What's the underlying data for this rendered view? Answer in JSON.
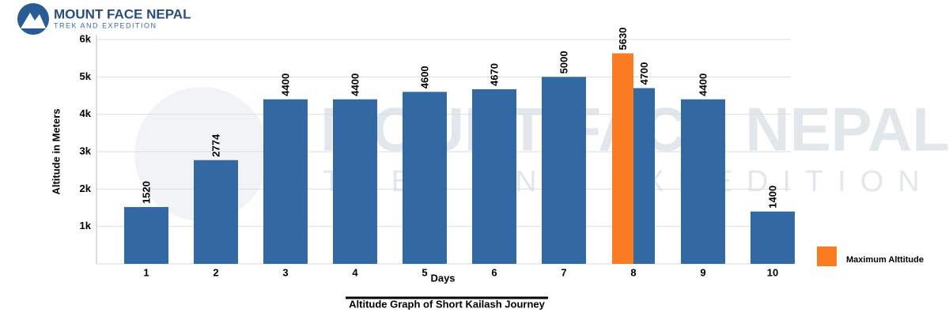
{
  "logo": {
    "name": "MOUNT FACE NEPAL",
    "tagline": "TREK AND EXPEDITION"
  },
  "chart_data": {
    "type": "bar",
    "title": "Altitude Graph of Short Kailash Journey",
    "x_label": "Days",
    "y_label": "Altitude in Meters",
    "categories": [
      "1",
      "2",
      "3",
      "4",
      "5",
      "6",
      "7",
      "8",
      "9",
      "10"
    ],
    "series": [
      {
        "color": "#3369a3",
        "values": [
          1520,
          2774,
          4400,
          4400,
          4600,
          4670,
          5000,
          4700,
          4400,
          1400
        ]
      },
      {
        "name": "Maximum Alttitude",
        "color": "#fa7b22",
        "values": [
          null,
          null,
          null,
          null,
          null,
          null,
          null,
          5630,
          null,
          null
        ]
      }
    ],
    "ylim": [
      0,
      6000
    ],
    "yticks": [
      {
        "value": 1000,
        "label": "1k"
      },
      {
        "value": 2000,
        "label": "2k"
      },
      {
        "value": 3000,
        "label": "3k"
      },
      {
        "value": 4000,
        "label": "4k"
      },
      {
        "value": 5000,
        "label": "5k"
      },
      {
        "value": 6000,
        "label": "6k"
      }
    ],
    "grid": true,
    "legend": "bottom-right"
  }
}
